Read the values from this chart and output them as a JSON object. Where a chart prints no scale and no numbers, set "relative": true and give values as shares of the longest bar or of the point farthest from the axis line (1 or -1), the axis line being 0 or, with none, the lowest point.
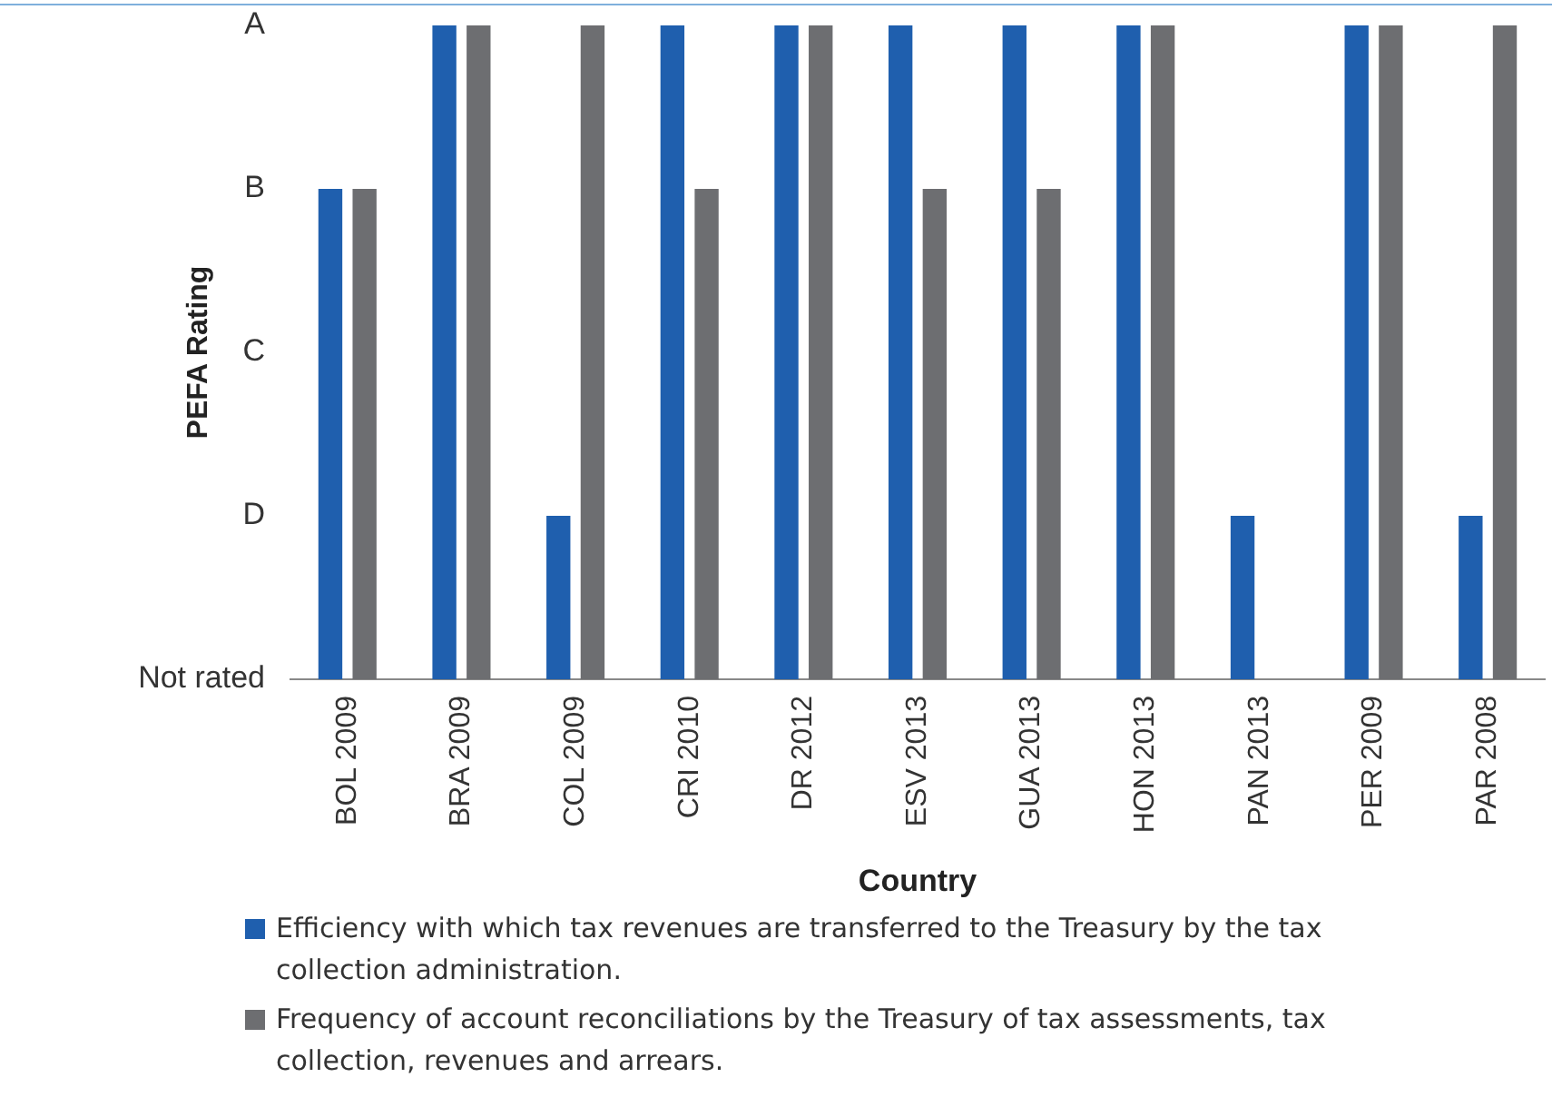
{
  "chart_data": {
    "type": "bar",
    "xlabel": "Country",
    "ylabel": "PEFA Rating",
    "categories": [
      "BOL 2009",
      "BRA 2009",
      "COL 2009",
      "CRI 2010",
      "DR 2012",
      "ESV 2013",
      "GUA 2013",
      "HON 2013",
      "PAN 2013",
      "PER 2009",
      "PAR 2008"
    ],
    "series": [
      {
        "name": "Efficiency with which tax revenues are transferred to the Treasury by the tax collection administration.",
        "color": "#1f5fae",
        "values": [
          0.75,
          1,
          0.25,
          1,
          1,
          1,
          1,
          1,
          0.25,
          1,
          0.25
        ]
      },
      {
        "name": "Frequency of account reconciliations by the Treasury of tax assessments, tax collection, revenues and arrears.",
        "color": "#6d6e71",
        "values": [
          0.75,
          1,
          1,
          0.75,
          1,
          0.75,
          0.75,
          1,
          0,
          1,
          1
        ]
      }
    ],
    "relative": true,
    "annotations": [
      "A",
      "B",
      "C",
      "D",
      "Not rated"
    ],
    "grid": false,
    "legend": "bottom"
  }
}
